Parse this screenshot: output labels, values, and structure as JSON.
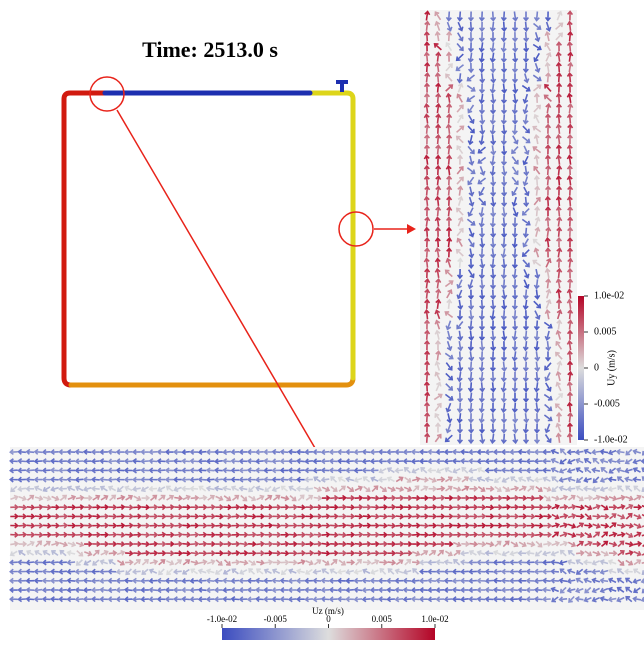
{
  "title": "Time: 2513.0 s",
  "colorbar_y": {
    "label": "Uy (m/s)",
    "ticks": [
      {
        "value": 0.01,
        "label": "1.0e-02"
      },
      0.005,
      0,
      -0.005,
      {
        "value": -0.01,
        "label": "-1.0e-02"
      }
    ]
  },
  "colorbar_z": {
    "label": "Uz (m/s)",
    "ticks": [
      {
        "value": -0.01,
        "label": "-1.0e-02"
      },
      -0.005,
      0,
      0.005,
      {
        "value": 0.01,
        "label": "1.0e-02"
      }
    ]
  }
}
